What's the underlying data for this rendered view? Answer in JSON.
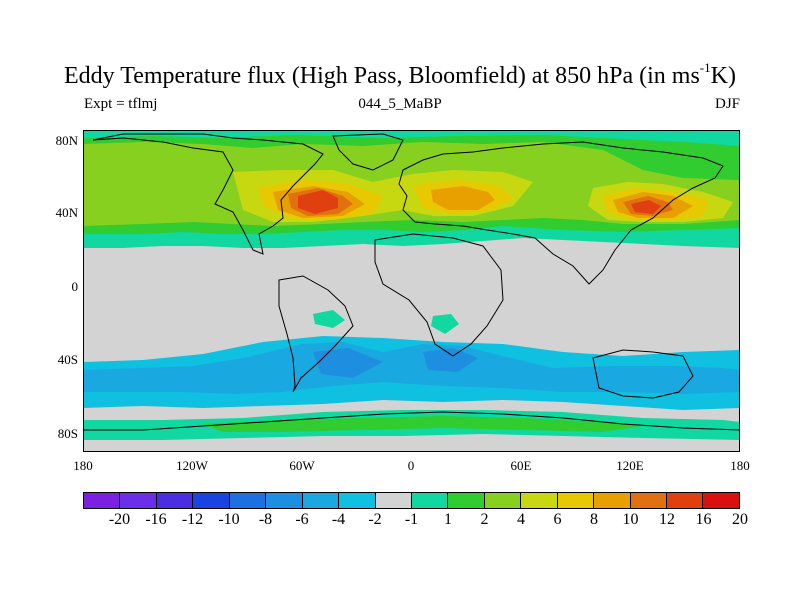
{
  "title": {
    "main": "Eddy Temperature flux (High Pass, Bloomfield) at 850 hPa (in ms",
    "superscript": "-1",
    "suffix": "K)"
  },
  "subtitle": {
    "left": "Expt = tflmj",
    "center": "044_5_MaBP",
    "right": "DJF"
  },
  "map": {
    "projection": "cylindrical-equidistant",
    "lon_range": [
      -180,
      180
    ],
    "lat_range": [
      -90,
      90
    ],
    "x_ticks": [
      "180",
      "120W",
      "60W",
      "0",
      "60E",
      "120E",
      "180"
    ],
    "y_ticks": [
      "80N",
      "40N",
      "0",
      "40S",
      "80S"
    ],
    "land_outline_color": "#000000",
    "missing_color": "#d3d3d3"
  },
  "colorbar": {
    "colors": [
      "#7b1fe0",
      "#6a2fe6",
      "#4a2ee0",
      "#1a44e0",
      "#1e70e0",
      "#1e8ee0",
      "#1aa8e0",
      "#10c0e0",
      "#d3d3d3",
      "#10d8a0",
      "#30cc30",
      "#88d020",
      "#c8d810",
      "#e8c800",
      "#e8a000",
      "#e07010",
      "#e04010",
      "#d81010"
    ],
    "labels": [
      "-20",
      "-16",
      "-12",
      "-10",
      "-8",
      "-6",
      "-4",
      "-2",
      "-1",
      "1",
      "2",
      "4",
      "6",
      "8",
      "10",
      "12",
      "16",
      "20"
    ]
  }
}
